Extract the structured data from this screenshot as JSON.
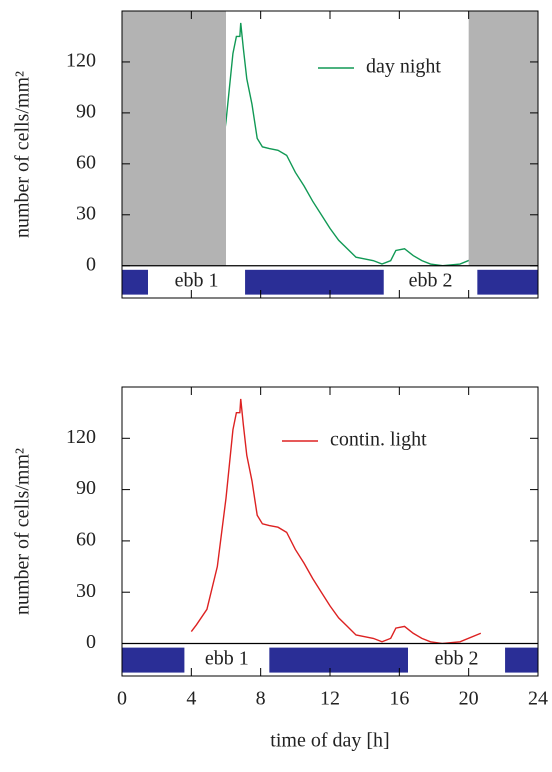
{
  "chart_data": [
    {
      "type": "line",
      "ylabel": "number of cells/mm²",
      "x": [
        4,
        4.3,
        4.9,
        5.5,
        6.0,
        6.2,
        6.4,
        6.6,
        6.8,
        6.85,
        7.0,
        7.2,
        7.5,
        7.8,
        8.1,
        8.5,
        9,
        9.5,
        10,
        10.5,
        11,
        11.5,
        12,
        12.5,
        13,
        13.5,
        14,
        14.5,
        15,
        15.5,
        15.8,
        16.3,
        16.8,
        17.3,
        17.8,
        18.5,
        19.5,
        20.7
      ],
      "series": [
        {
          "name": "day night",
          "color": "#119955",
          "values": [
            7,
            11,
            20,
            45,
            85,
            105,
            125,
            135,
            135,
            143,
            128,
            110,
            95,
            75,
            70,
            69,
            68,
            65,
            55,
            47,
            38,
            30,
            22,
            15,
            10,
            5,
            4,
            3,
            1,
            3,
            9,
            10,
            6,
            3,
            1,
            0,
            1,
            6
          ]
        }
      ],
      "shading": [
        [
          0,
          6
        ],
        [
          20,
          24
        ]
      ],
      "ebb": [
        [
          0,
          1.5
        ],
        [
          7.1,
          15.1
        ],
        [
          20.5,
          24
        ]
      ],
      "ebb_labels": [
        "ebb 1",
        "ebb 2"
      ],
      "xlim": [
        0,
        24
      ],
      "xticks": [
        0,
        4,
        8,
        12,
        16,
        20,
        24
      ],
      "xtick_labels": false,
      "ylim": [
        -19,
        150
      ],
      "yticks": [
        0,
        30,
        60,
        90,
        120
      ]
    },
    {
      "type": "line",
      "ylabel": "number of cells/mm²",
      "xlabel": "time of day [h]",
      "x": [
        4,
        4.3,
        4.9,
        5.5,
        6.0,
        6.2,
        6.4,
        6.6,
        6.8,
        6.85,
        7.0,
        7.2,
        7.5,
        7.8,
        8.1,
        8.5,
        9,
        9.5,
        10,
        10.5,
        11,
        11.5,
        12,
        12.5,
        13,
        13.5,
        14,
        14.5,
        15,
        15.5,
        15.8,
        16.3,
        16.8,
        17.3,
        17.8,
        18.5,
        19.5,
        20.7
      ],
      "series": [
        {
          "name": "contin. light",
          "color": "#dd2222",
          "values": [
            7,
            11,
            20,
            45,
            85,
            105,
            125,
            135,
            135,
            143,
            128,
            110,
            95,
            75,
            70,
            69,
            68,
            65,
            55,
            47,
            38,
            30,
            22,
            15,
            10,
            5,
            4,
            3,
            1,
            3,
            9,
            10,
            6,
            3,
            1,
            0,
            1,
            6
          ]
        }
      ],
      "ebb": [
        [
          0,
          3.6
        ],
        [
          8.5,
          16.5
        ],
        [
          22.1,
          24
        ]
      ],
      "ebb_labels": [
        "ebb 1",
        "ebb 2"
      ],
      "xlim": [
        0,
        24
      ],
      "xticks": [
        0,
        4,
        8,
        12,
        16,
        20,
        24
      ],
      "xtick_labels": true,
      "ylim": [
        -19,
        150
      ],
      "yticks": [
        0,
        30,
        60,
        90,
        120
      ]
    }
  ]
}
